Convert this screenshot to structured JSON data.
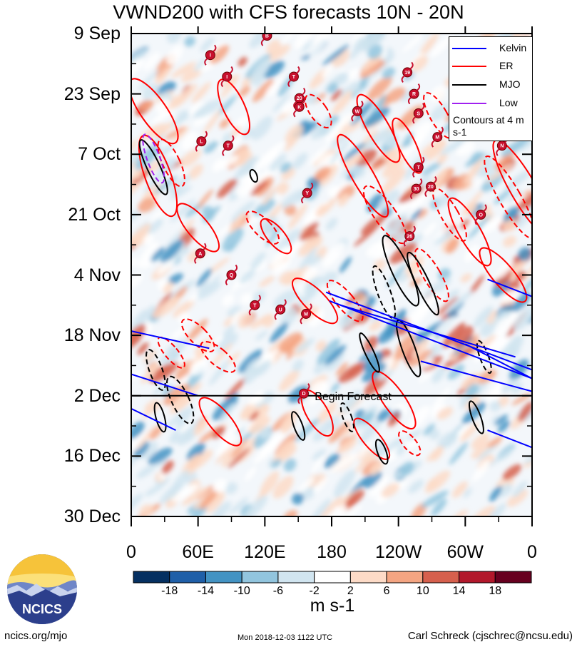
{
  "title": "VWND200 with CFS forecasts 10N - 20N",
  "chart_data": {
    "type": "heatmap",
    "title": "VWND200 with CFS forecasts 10N - 20N",
    "y_axis_type": "time",
    "y_tick_labels": [
      "9 Sep",
      "23 Sep",
      "7 Oct",
      "21 Oct",
      "4 Nov",
      "18 Nov",
      "2 Dec",
      "16 Dec",
      "30 Dec"
    ],
    "x_tick_labels": [
      "0",
      "60E",
      "120E",
      "180",
      "120W",
      "60W",
      "0"
    ],
    "xlim": [
      0,
      360
    ],
    "ylim_days": [
      0,
      112
    ],
    "begin_forecast_day": 84,
    "begin_forecast_label": "Begin Forecast",
    "colorbar": {
      "levels": [
        -18,
        -14,
        -10,
        -6,
        -2,
        2,
        6,
        10,
        14,
        18
      ],
      "labels": [
        "-18",
        "-14",
        "-10",
        "-6",
        "-2",
        "2",
        "6",
        "10",
        "14",
        "18"
      ],
      "colors": [
        "#053061",
        "#1f5fa8",
        "#4393c3",
        "#92c5de",
        "#d1e5f0",
        "#ffffff",
        "#fddbc7",
        "#f4a582",
        "#d6604d",
        "#b2182b",
        "#67001f"
      ],
      "units": "m s-1"
    },
    "legend": [
      {
        "name": "Kelvin",
        "color": "#0000ff"
      },
      {
        "name": "ER",
        "color": "#ff0000"
      },
      {
        "name": "MJO",
        "color": "#000000"
      },
      {
        "name": "Low",
        "color": "#a020f0"
      }
    ],
    "contour_note": "Contours at 4 m s-1",
    "storms": [
      {
        "label": "B",
        "lon": 122,
        "day": 0.5
      },
      {
        "label": "I",
        "lon": 71,
        "day": 5
      },
      {
        "label": "I",
        "lon": 86,
        "day": 10
      },
      {
        "label": "T",
        "lon": 146,
        "day": 10
      },
      {
        "label": "19",
        "lon": 248,
        "day": 9
      },
      {
        "label": "20",
        "lon": 151,
        "day": 15
      },
      {
        "label": "K",
        "lon": 151,
        "day": 17
      },
      {
        "label": "R",
        "lon": 254,
        "day": 14
      },
      {
        "label": "W",
        "lon": 203,
        "day": 18
      },
      {
        "label": "S",
        "lon": 258,
        "day": 18.5
      },
      {
        "label": "L",
        "lon": 63,
        "day": 25
      },
      {
        "label": "T",
        "lon": 87,
        "day": 26
      },
      {
        "label": "M",
        "lon": 275,
        "day": 24
      },
      {
        "label": "N",
        "lon": 333,
        "day": 26
      },
      {
        "label": "T",
        "lon": 258,
        "day": 31
      },
      {
        "label": "30",
        "lon": 256,
        "day": 36
      },
      {
        "label": "20",
        "lon": 269,
        "day": 35.5
      },
      {
        "label": "Y",
        "lon": 158,
        "day": 37
      },
      {
        "label": "O",
        "lon": 314,
        "day": 42
      },
      {
        "label": "26",
        "lon": 250,
        "day": 47
      },
      {
        "label": "A",
        "lon": 62,
        "day": 51
      },
      {
        "label": "Q",
        "lon": 90,
        "day": 56
      },
      {
        "label": "T",
        "lon": 111,
        "day": 63
      },
      {
        "label": "U",
        "lon": 134,
        "day": 64
      },
      {
        "label": "M",
        "lon": 157,
        "day": 65
      },
      {
        "label": "D",
        "lon": 155,
        "day": 83.5
      }
    ]
  },
  "footer": {
    "left": "ncics.org/mjo",
    "middle": "Mon 2018-12-03 1122 UTC",
    "right": "Carl Schreck (cjschrec@ncsu.edu)"
  },
  "logo_text": "NCICS"
}
